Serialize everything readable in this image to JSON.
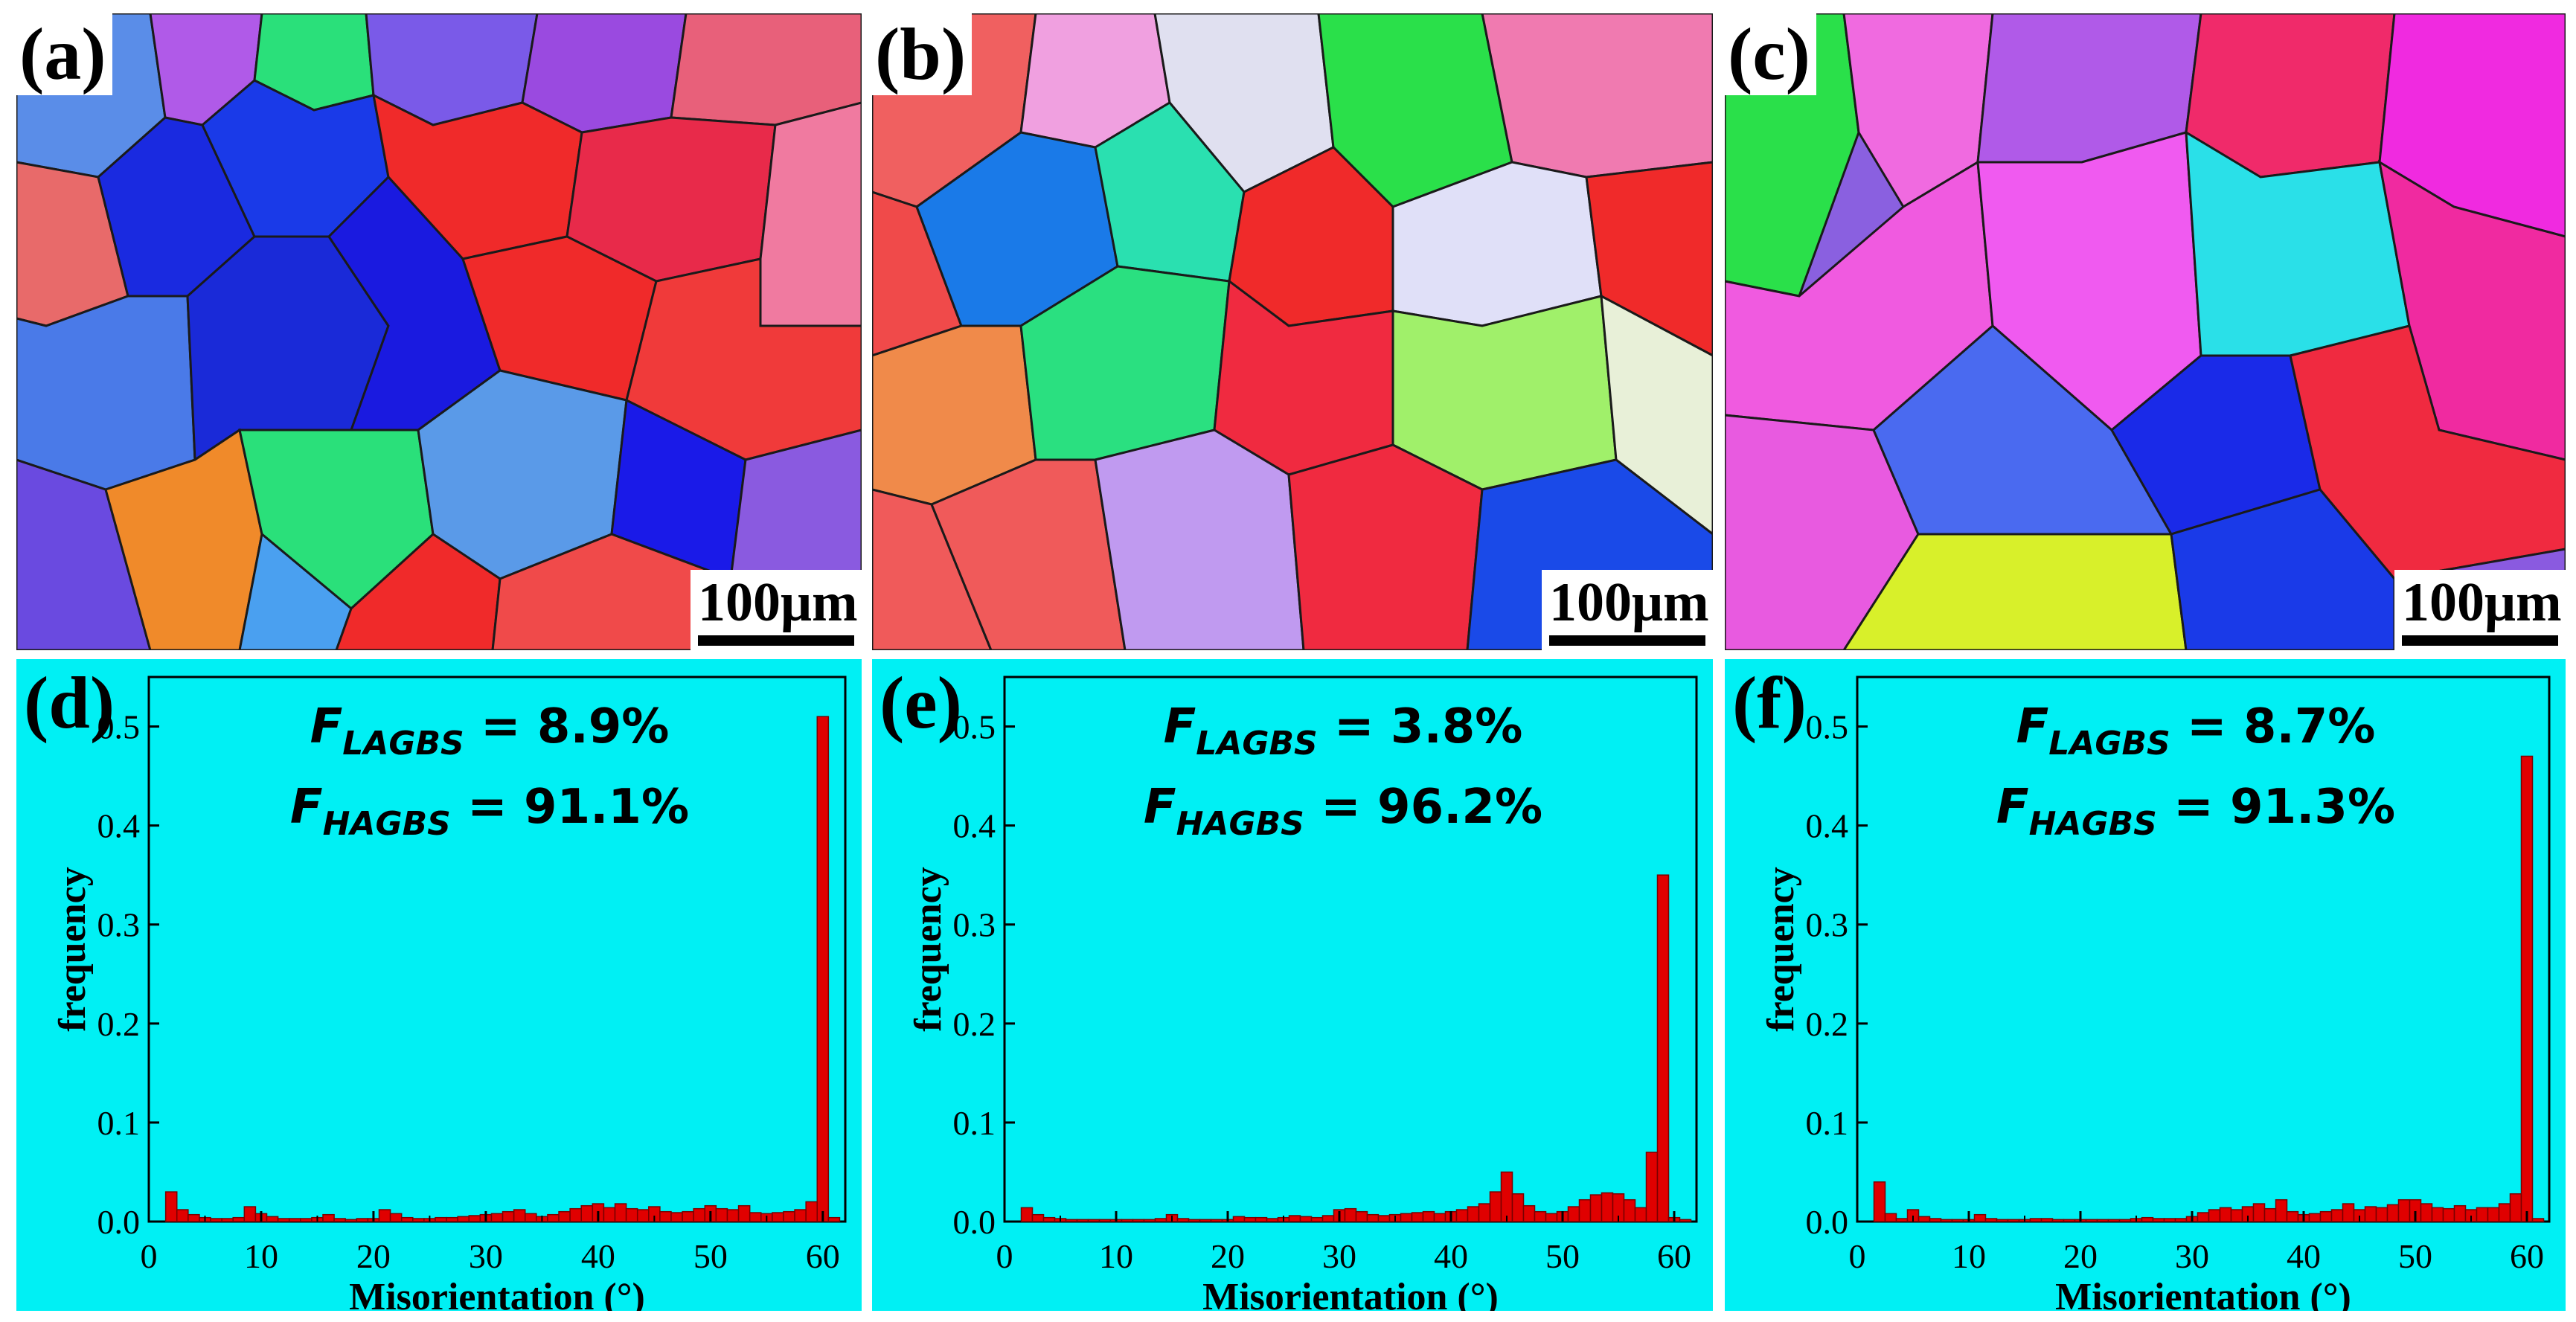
{
  "colors": {
    "background": "#00f0f4",
    "bar": "#e00000",
    "bar_edge": "#7a0000",
    "axis": "#000000"
  },
  "ebsd_panels": [
    {
      "label": "(a)",
      "scale_bar": "100μm"
    },
    {
      "label": "(b)",
      "scale_bar": "100μm"
    },
    {
      "label": "(c)",
      "scale_bar": "100μm"
    }
  ],
  "chart_data": [
    {
      "type": "bar",
      "label": "(d)",
      "annotation_lines": [
        "F_LAGBS = 8.9%",
        "F_HAGBS = 91.1%"
      ],
      "annotations": [
        {
          "symbol": "F",
          "subscript": "LAGBS",
          "value": "= 8.9%"
        },
        {
          "symbol": "F",
          "subscript": "HAGBS",
          "value": "= 91.1%"
        }
      ],
      "xlabel": "Misorientation (°)",
      "ylabel": "frequency",
      "xlim": [
        0,
        62
      ],
      "ylim": [
        0,
        0.55
      ],
      "xticks": [
        0,
        10,
        20,
        30,
        40,
        50,
        60
      ],
      "yticks": [
        0.0,
        0.1,
        0.2,
        0.3,
        0.4,
        0.5
      ],
      "ytick_labels": [
        "0.0",
        "0.1",
        "0.2",
        "0.3",
        "0.4",
        "0.5"
      ],
      "bin_width": 1,
      "x": [
        2,
        3,
        4,
        5,
        6,
        7,
        8,
        9,
        10,
        11,
        12,
        13,
        14,
        15,
        16,
        17,
        18,
        19,
        20,
        21,
        22,
        23,
        24,
        25,
        26,
        27,
        28,
        29,
        30,
        31,
        32,
        33,
        34,
        35,
        36,
        37,
        38,
        39,
        40,
        41,
        42,
        43,
        44,
        45,
        46,
        47,
        48,
        49,
        50,
        51,
        52,
        53,
        54,
        55,
        56,
        57,
        58,
        59,
        60,
        61
      ],
      "values": [
        0.03,
        0.012,
        0.007,
        0.004,
        0.003,
        0.003,
        0.004,
        0.015,
        0.008,
        0.005,
        0.003,
        0.003,
        0.003,
        0.004,
        0.007,
        0.003,
        0.002,
        0.003,
        0.003,
        0.012,
        0.008,
        0.004,
        0.003,
        0.003,
        0.004,
        0.004,
        0.005,
        0.006,
        0.007,
        0.008,
        0.01,
        0.012,
        0.008,
        0.005,
        0.007,
        0.01,
        0.013,
        0.016,
        0.018,
        0.014,
        0.018,
        0.013,
        0.012,
        0.015,
        0.01,
        0.009,
        0.01,
        0.013,
        0.016,
        0.013,
        0.012,
        0.016,
        0.009,
        0.008,
        0.009,
        0.01,
        0.012,
        0.02,
        0.51,
        0.004
      ]
    },
    {
      "type": "bar",
      "label": "(e)",
      "annotation_lines": [
        "F_LAGBS = 3.8%",
        "F_HAGBS = 96.2%"
      ],
      "annotations": [
        {
          "symbol": "F",
          "subscript": "LAGBS",
          "value": "= 3.8%"
        },
        {
          "symbol": "F",
          "subscript": "HAGBS",
          "value": "= 96.2%"
        }
      ],
      "xlabel": "Misorientation (°)",
      "ylabel": "frequency",
      "xlim": [
        0,
        62
      ],
      "ylim": [
        0,
        0.55
      ],
      "xticks": [
        0,
        10,
        20,
        30,
        40,
        50,
        60
      ],
      "yticks": [
        0.0,
        0.1,
        0.2,
        0.3,
        0.4,
        0.5
      ],
      "ytick_labels": [
        "0.0",
        "0.1",
        "0.2",
        "0.3",
        "0.4",
        "0.5"
      ],
      "bin_width": 1,
      "x": [
        2,
        3,
        4,
        5,
        6,
        7,
        8,
        9,
        10,
        11,
        12,
        13,
        14,
        15,
        16,
        17,
        18,
        19,
        20,
        21,
        22,
        23,
        24,
        25,
        26,
        27,
        28,
        29,
        30,
        31,
        32,
        33,
        34,
        35,
        36,
        37,
        38,
        39,
        40,
        41,
        42,
        43,
        44,
        45,
        46,
        47,
        48,
        49,
        50,
        51,
        52,
        53,
        54,
        55,
        56,
        57,
        58,
        59,
        60,
        61
      ],
      "values": [
        0.014,
        0.007,
        0.004,
        0.003,
        0.002,
        0.002,
        0.002,
        0.002,
        0.002,
        0.002,
        0.002,
        0.002,
        0.003,
        0.007,
        0.003,
        0.002,
        0.002,
        0.002,
        0.002,
        0.005,
        0.004,
        0.004,
        0.003,
        0.004,
        0.006,
        0.005,
        0.004,
        0.006,
        0.012,
        0.013,
        0.01,
        0.007,
        0.006,
        0.007,
        0.008,
        0.009,
        0.01,
        0.008,
        0.01,
        0.012,
        0.015,
        0.018,
        0.03,
        0.05,
        0.028,
        0.016,
        0.01,
        0.008,
        0.01,
        0.015,
        0.022,
        0.027,
        0.029,
        0.028,
        0.022,
        0.014,
        0.07,
        0.35,
        0.004,
        0.002
      ]
    },
    {
      "type": "bar",
      "label": "(f)",
      "annotation_lines": [
        "F_LAGBS = 8.7%",
        "F_HAGBS = 91.3%"
      ],
      "annotations": [
        {
          "symbol": "F",
          "subscript": "LAGBS",
          "value": "= 8.7%"
        },
        {
          "symbol": "F",
          "subscript": "HAGBS",
          "value": "= 91.3%"
        }
      ],
      "xlabel": "Misorientation (°)",
      "ylabel": "frequency",
      "xlim": [
        0,
        62
      ],
      "ylim": [
        0,
        0.55
      ],
      "xticks": [
        0,
        10,
        20,
        30,
        40,
        50,
        60
      ],
      "yticks": [
        0.0,
        0.1,
        0.2,
        0.3,
        0.4,
        0.5
      ],
      "ytick_labels": [
        "0.0",
        "0.1",
        "0.2",
        "0.3",
        "0.4",
        "0.5"
      ],
      "bin_width": 1,
      "x": [
        2,
        3,
        4,
        5,
        6,
        7,
        8,
        9,
        10,
        11,
        12,
        13,
        14,
        15,
        16,
        17,
        18,
        19,
        20,
        21,
        22,
        23,
        24,
        25,
        26,
        27,
        28,
        29,
        30,
        31,
        32,
        33,
        34,
        35,
        36,
        37,
        38,
        39,
        40,
        41,
        42,
        43,
        44,
        45,
        46,
        47,
        48,
        49,
        50,
        51,
        52,
        53,
        54,
        55,
        56,
        57,
        58,
        59,
        60,
        61
      ],
      "values": [
        0.04,
        0.008,
        0.003,
        0.012,
        0.005,
        0.003,
        0.002,
        0.002,
        0.002,
        0.007,
        0.003,
        0.002,
        0.002,
        0.002,
        0.003,
        0.003,
        0.002,
        0.002,
        0.002,
        0.002,
        0.002,
        0.002,
        0.002,
        0.003,
        0.004,
        0.003,
        0.003,
        0.003,
        0.005,
        0.009,
        0.012,
        0.014,
        0.012,
        0.015,
        0.018,
        0.013,
        0.022,
        0.01,
        0.007,
        0.008,
        0.01,
        0.012,
        0.018,
        0.012,
        0.015,
        0.014,
        0.017,
        0.022,
        0.022,
        0.018,
        0.014,
        0.013,
        0.016,
        0.012,
        0.014,
        0.014,
        0.018,
        0.028,
        0.47,
        0.003
      ]
    }
  ]
}
